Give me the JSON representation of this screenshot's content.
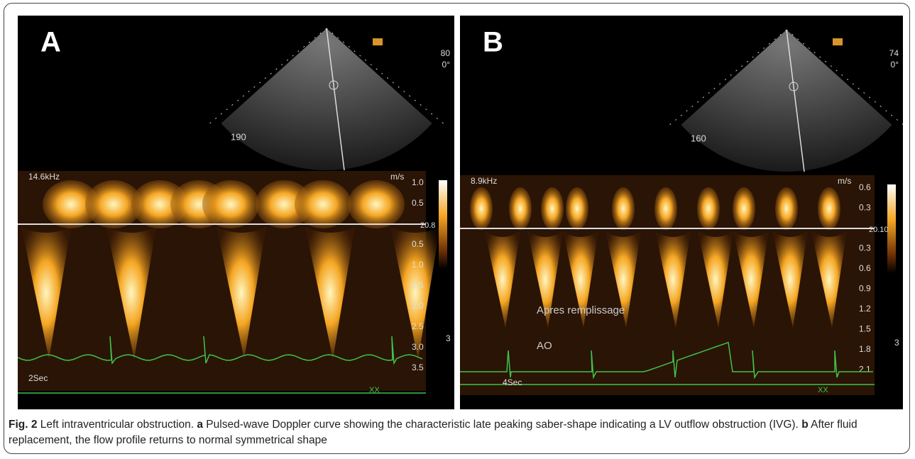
{
  "panels": [
    {
      "label": "A",
      "frequency": "14.6kHz",
      "unit": "m/s",
      "depth": "190",
      "frame_rate": "80",
      "angle": "0°",
      "scale_top": [
        "1.0",
        "0.5"
      ],
      "scale_bottom": [
        "0.5",
        "1.0",
        "1.5",
        "2.0",
        "2.5",
        "3.0",
        "3.5"
      ],
      "gain": "20.8",
      "gain_level": "3",
      "sweep": "2Sec",
      "marker": "XX"
    },
    {
      "label": "B",
      "frequency": "8.9kHz",
      "unit": "m/s",
      "depth": "160",
      "frame_rate": "74",
      "angle": "0°",
      "scale_top": [
        "0.6",
        "0.3"
      ],
      "scale_bottom": [
        "0.3",
        "0.6",
        "0.9",
        "1.2",
        "1.5",
        "1.8",
        "2.1"
      ],
      "gain": "20.10",
      "gain_level": "3",
      "sweep": "4Sec",
      "marker": "XX",
      "annotations": [
        "Apres remplissage",
        "AO"
      ]
    }
  ],
  "caption": {
    "figure": "Fig. 2",
    "title": "Left intraventricular obstruction.",
    "parts": [
      {
        "letter": "a",
        "text": "Pulsed-wave Doppler curve showing the characteristic late peaking saber-shape indicating a LV outflow obstruction (IVG)."
      },
      {
        "letter": "b",
        "text": "After fluid replacement, the flow profile returns to normal symmetrical shape"
      }
    ]
  }
}
